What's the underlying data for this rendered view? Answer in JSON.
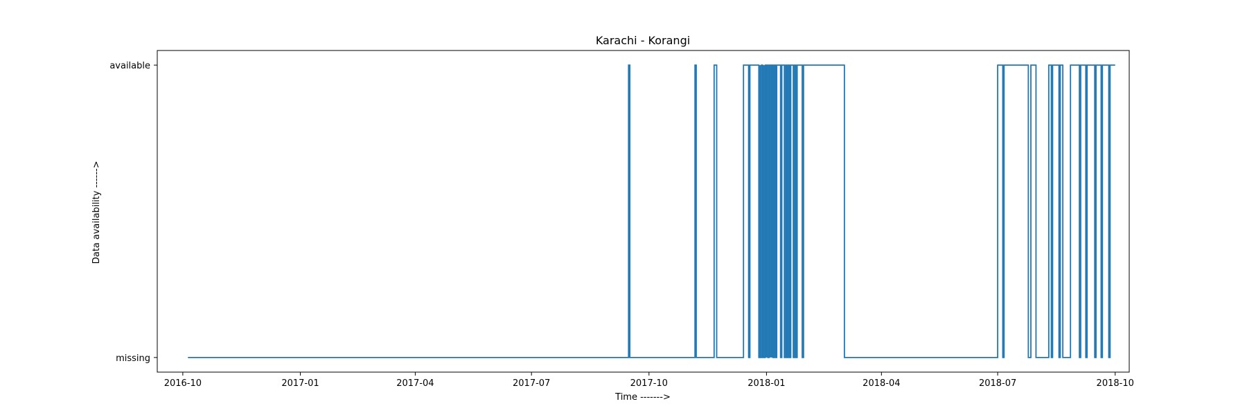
{
  "chart_data": {
    "type": "line",
    "drawstyle": "steps",
    "title": "Karachi - Korangi",
    "xlabel": "Time ------->",
    "ylabel": "Data availability ------>",
    "x_ticks": [
      "2016-10-01",
      "2017-01-01",
      "2017-04-01",
      "2017-07-01",
      "2017-10-01",
      "2018-01-01",
      "2018-04-01",
      "2018-07-01",
      "2018-10-01"
    ],
    "x_tick_labels": [
      "2016-10",
      "2017-01",
      "2017-04",
      "2017-07",
      "2017-10",
      "2018-01",
      "2018-04",
      "2018-07",
      "2018-10"
    ],
    "y_ticks": [
      0,
      1
    ],
    "y_tick_labels": [
      "missing",
      "available"
    ],
    "xlim": [
      "2016-09-11",
      "2018-10-12"
    ],
    "ylim": [
      -0.05,
      1.05
    ],
    "grid": false,
    "color": "#1f77b4",
    "series_segments": [
      [
        "2016-10-05",
        0
      ],
      [
        "2017-09-15",
        1
      ],
      [
        "2017-09-16",
        0
      ],
      [
        "2017-11-06",
        1
      ],
      [
        "2017-11-07",
        0
      ],
      [
        "2017-11-21",
        1
      ],
      [
        "2017-11-23",
        0
      ],
      [
        "2017-12-14",
        1
      ],
      [
        "2017-12-18",
        0
      ],
      [
        "2017-12-19",
        1
      ],
      [
        "2017-12-26",
        0
      ],
      [
        "2017-12-27",
        1
      ],
      [
        "2017-12-27",
        0
      ],
      [
        "2017-12-28",
        1
      ],
      [
        "2017-12-29",
        0
      ],
      [
        "2017-12-30",
        1
      ],
      [
        "2017-12-30",
        0
      ],
      [
        "2017-12-31",
        1
      ],
      [
        "2018-01-01",
        0
      ],
      [
        "2018-01-01",
        1
      ],
      [
        "2018-01-02",
        0
      ],
      [
        "2018-01-03",
        1
      ],
      [
        "2018-01-04",
        0
      ],
      [
        "2018-01-04",
        1
      ],
      [
        "2018-01-05",
        0
      ],
      [
        "2018-01-05",
        1
      ],
      [
        "2018-01-06",
        0
      ],
      [
        "2018-01-07",
        1
      ],
      [
        "2018-01-08",
        0
      ],
      [
        "2018-01-09",
        1
      ],
      [
        "2018-01-12",
        0
      ],
      [
        "2018-01-13",
        1
      ],
      [
        "2018-01-15",
        0
      ],
      [
        "2018-01-16",
        1
      ],
      [
        "2018-01-17",
        0
      ],
      [
        "2018-01-18",
        1
      ],
      [
        "2018-01-19",
        0
      ],
      [
        "2018-01-20",
        1
      ],
      [
        "2018-01-22",
        0
      ],
      [
        "2018-01-23",
        1
      ],
      [
        "2018-01-24",
        0
      ],
      [
        "2018-01-25",
        1
      ],
      [
        "2018-01-29",
        0
      ],
      [
        "2018-01-30",
        1
      ],
      [
        "2018-03-03",
        0
      ],
      [
        "2018-07-01",
        1
      ],
      [
        "2018-07-05",
        0
      ],
      [
        "2018-07-06",
        1
      ],
      [
        "2018-07-25",
        0
      ],
      [
        "2018-07-27",
        1
      ],
      [
        "2018-07-31",
        0
      ],
      [
        "2018-08-10",
        1
      ],
      [
        "2018-08-12",
        0
      ],
      [
        "2018-08-13",
        1
      ],
      [
        "2018-08-18",
        0
      ],
      [
        "2018-08-19",
        1
      ],
      [
        "2018-08-21",
        0
      ],
      [
        "2018-08-27",
        1
      ],
      [
        "2018-09-03",
        0
      ],
      [
        "2018-09-04",
        1
      ],
      [
        "2018-09-08",
        0
      ],
      [
        "2018-09-09",
        1
      ],
      [
        "2018-09-15",
        0
      ],
      [
        "2018-09-16",
        1
      ],
      [
        "2018-09-20",
        0
      ],
      [
        "2018-09-21",
        1
      ],
      [
        "2018-09-26",
        0
      ],
      [
        "2018-09-27",
        1
      ],
      [
        "2018-10-01",
        1
      ]
    ]
  }
}
